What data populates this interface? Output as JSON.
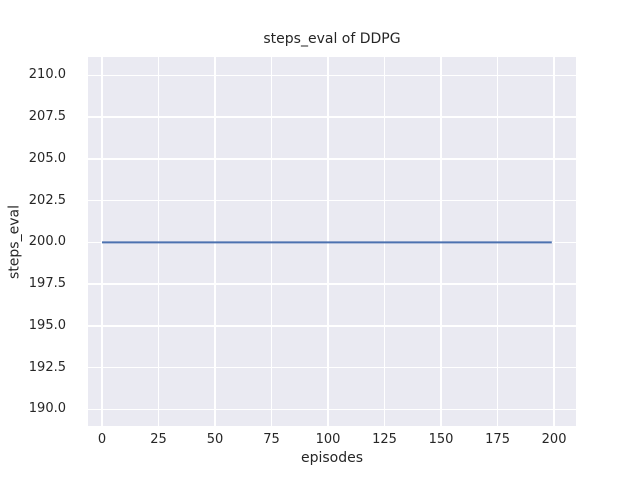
{
  "colors": {
    "figure_background": "#ffffff",
    "plot_background": "#eaeaf2",
    "grid": "#ffffff",
    "text": "#262626",
    "line": "#4c72b0"
  },
  "chart_data": {
    "type": "line",
    "title": "steps_eval of DDPG",
    "xlabel": "episodes",
    "ylabel": "steps_eval",
    "x_ticks": [
      0,
      25,
      50,
      75,
      100,
      125,
      150,
      175,
      200
    ],
    "x_tick_labels": [
      "0",
      "25",
      "50",
      "75",
      "100",
      "125",
      "150",
      "175",
      "200"
    ],
    "y_ticks": [
      190.0,
      192.5,
      195.0,
      197.5,
      200.0,
      202.5,
      205.0,
      207.5,
      210.0
    ],
    "y_tick_labels": [
      "190.0",
      "192.5",
      "195.0",
      "197.5",
      "200.0",
      "202.5",
      "205.0",
      "207.5",
      "210.0"
    ],
    "xlim": [
      -6.2,
      209.7
    ],
    "ylim": [
      189.0,
      211.1
    ],
    "grid": true,
    "legend_position": "none",
    "series": [
      {
        "name": "steps_eval",
        "color": "#4c72b0",
        "x": [
          0,
          199
        ],
        "y": [
          200.0,
          200.0
        ]
      }
    ]
  }
}
